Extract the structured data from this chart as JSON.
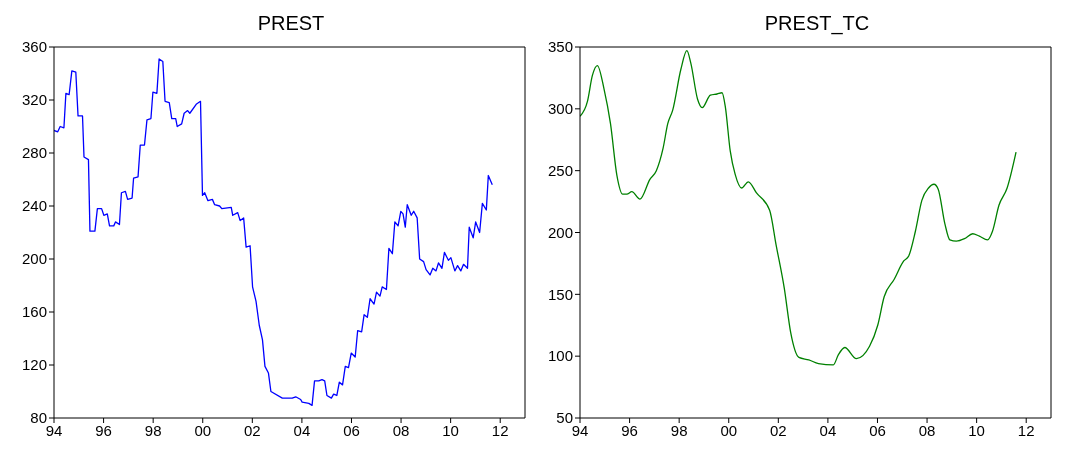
{
  "chart_data": [
    {
      "type": "line",
      "title": "PREST",
      "xlim": [
        1994,
        2013
      ],
      "xticks": [
        {
          "value": 1994,
          "label": "94"
        },
        {
          "value": 1996,
          "label": "96"
        },
        {
          "value": 1998,
          "label": "98"
        },
        {
          "value": 2000,
          "label": "00"
        },
        {
          "value": 2002,
          "label": "02"
        },
        {
          "value": 2004,
          "label": "04"
        },
        {
          "value": 2006,
          "label": "06"
        },
        {
          "value": 2008,
          "label": "08"
        },
        {
          "value": 2010,
          "label": "10"
        },
        {
          "value": 2012,
          "label": "12"
        }
      ],
      "ylim": [
        80,
        360
      ],
      "yticks": [
        80,
        120,
        160,
        200,
        240,
        280,
        320,
        360
      ],
      "series": [
        {
          "color": "#0000ff",
          "x": [
            1994.0,
            1994.15,
            1994.25,
            1994.4,
            1994.48,
            1994.61,
            1994.72,
            1994.88,
            1994.97,
            1995.15,
            1995.21,
            1995.39,
            1995.45,
            1995.65,
            1995.75,
            1995.92,
            1996.01,
            1996.15,
            1996.24,
            1996.41,
            1996.48,
            1996.64,
            1996.72,
            1996.88,
            1996.97,
            1997.15,
            1997.21,
            1997.39,
            1997.48,
            1997.65,
            1997.75,
            1997.91,
            1997.99,
            1998.15,
            1998.24,
            1998.39,
            1998.48,
            1998.65,
            1998.75,
            1998.91,
            1998.97,
            1999.15,
            1999.25,
            1999.39,
            1999.48,
            1999.75,
            1999.91,
            1999.99,
            2000.08,
            2000.21,
            2000.39,
            2000.48,
            2000.68,
            2000.77,
            2001.15,
            2001.21,
            2001.41,
            2001.51,
            2001.65,
            2001.75,
            2001.91,
            2002.01,
            2002.15,
            2002.28,
            2002.41,
            2002.51,
            2002.65,
            2002.75,
            2003.21,
            2003.61,
            2003.75,
            2003.95,
            2004.01,
            2004.28,
            2004.41,
            2004.51,
            2004.68,
            2004.81,
            2004.92,
            2005.01,
            2005.19,
            2005.28,
            2005.41,
            2005.51,
            2005.64,
            2005.75,
            2005.88,
            2005.99,
            2006.15,
            2006.25,
            2006.41,
            2006.51,
            2006.64,
            2006.75,
            2006.91,
            2007.01,
            2007.15,
            2007.24,
            2007.41,
            2007.51,
            2007.65,
            2007.75,
            2007.88,
            2007.99,
            2008.08,
            2008.17,
            2008.25,
            2008.41,
            2008.51,
            2008.65,
            2008.75,
            2008.91,
            2009.01,
            2009.17,
            2009.28,
            2009.41,
            2009.51,
            2009.65,
            2009.75,
            2009.91,
            2010.01,
            2010.17,
            2010.28,
            2010.41,
            2010.52,
            2010.68,
            2010.75,
            2010.91,
            2011.01,
            2011.17,
            2011.28,
            2011.44,
            2011.52,
            2011.68
          ],
          "values": [
            297,
            296,
            300,
            299,
            325,
            324,
            342,
            341,
            308,
            308,
            277,
            275,
            221,
            221,
            238,
            238,
            233,
            234,
            225,
            225,
            228,
            226,
            250,
            251,
            245,
            246,
            261,
            262,
            286,
            286,
            305,
            306,
            326,
            325,
            351,
            349,
            319,
            318,
            306,
            306,
            300,
            302,
            310,
            312,
            310,
            317,
            319,
            248,
            250,
            244,
            245,
            241,
            240,
            238,
            239,
            233,
            235,
            229,
            231,
            209,
            210,
            179,
            168,
            150,
            139,
            119,
            114,
            100,
            95,
            95,
            96,
            94,
            92,
            91,
            89.5,
            108,
            108,
            109,
            108,
            97,
            95,
            98,
            97,
            107,
            105,
            119,
            118,
            129,
            126,
            146,
            145,
            158,
            156,
            170,
            166,
            175,
            172,
            179,
            177,
            208,
            204,
            228,
            225,
            236,
            234,
            224,
            241,
            233,
            236,
            231,
            200,
            198,
            192,
            188,
            193,
            191,
            197,
            193,
            205,
            199,
            201,
            191,
            195,
            191,
            196,
            193,
            224,
            216,
            228,
            220,
            242,
            237,
            263,
            256
          ]
        }
      ]
    },
    {
      "type": "line",
      "title": "PREST_TC",
      "xlim": [
        1994,
        2013
      ],
      "xticks": [
        {
          "value": 1994,
          "label": "94"
        },
        {
          "value": 1996,
          "label": "96"
        },
        {
          "value": 1998,
          "label": "98"
        },
        {
          "value": 2000,
          "label": "00"
        },
        {
          "value": 2002,
          "label": "02"
        },
        {
          "value": 2004,
          "label": "04"
        },
        {
          "value": 2006,
          "label": "06"
        },
        {
          "value": 2008,
          "label": "08"
        },
        {
          "value": 2010,
          "label": "10"
        },
        {
          "value": 2012,
          "label": "12"
        }
      ],
      "ylim": [
        50,
        350
      ],
      "yticks": [
        50,
        100,
        150,
        200,
        250,
        300,
        350
      ],
      "series": [
        {
          "color": "#008000",
          "x": [
            1994.0,
            1994.3,
            1994.5,
            1994.7,
            1994.97,
            1995.23,
            1995.49,
            1995.72,
            1995.89,
            1996.09,
            1996.42,
            1996.82,
            1997.08,
            1997.35,
            1997.54,
            1997.74,
            1998.07,
            1998.31,
            1998.47,
            1998.74,
            1998.93,
            1999.26,
            1999.53,
            1999.73,
            1999.86,
            2000.06,
            2000.26,
            2000.52,
            2000.79,
            2001.12,
            2001.65,
            2001.91,
            2002.24,
            2002.5,
            2002.83,
            2003.23,
            2003.62,
            2004.22,
            2004.42,
            2004.68,
            2005.15,
            2005.68,
            2006.01,
            2006.27,
            2006.67,
            2007.06,
            2007.26,
            2007.53,
            2007.79,
            2008.06,
            2008.28,
            2008.45,
            2008.72,
            2008.92,
            2009.18,
            2009.51,
            2009.84,
            2010.11,
            2010.44,
            2010.64,
            2010.9,
            2011.23,
            2011.59
          ],
          "values": [
            294,
            306,
            327,
            335,
            316,
            288,
            246,
            231,
            231,
            233,
            227,
            243,
            250,
            268,
            288,
            299,
            332,
            347,
            337,
            308,
            301,
            311,
            312,
            313,
            302,
            266,
            247,
            236,
            241,
            232,
            218,
            190,
            155,
            119,
            99,
            97,
            94,
            93,
            101,
            107,
            98,
            108,
            125,
            148,
            162,
            177,
            181,
            201,
            226,
            236,
            239,
            235,
            207,
            194,
            193,
            195,
            199,
            197,
            194,
            201,
            222,
            236,
            265
          ]
        }
      ]
    }
  ]
}
